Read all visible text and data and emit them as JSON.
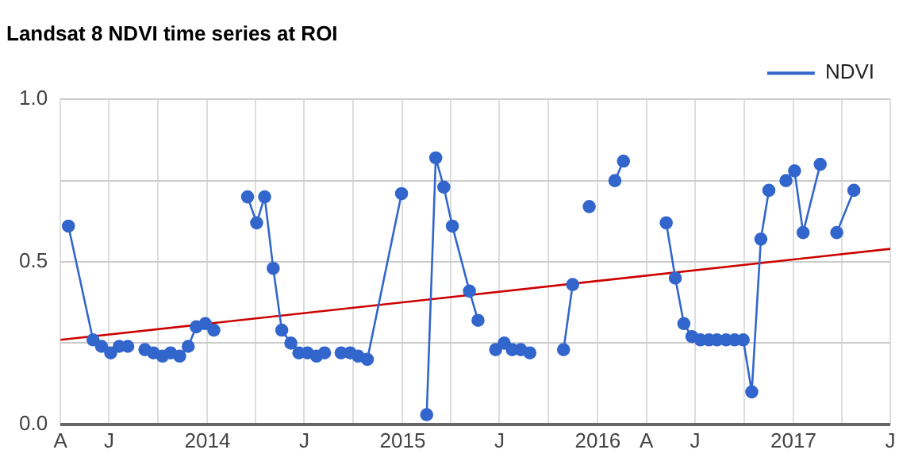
{
  "chart_data": {
    "type": "line",
    "title": "Landsat 8 NDVI time series at ROI",
    "xlim": [
      "2013-04-01",
      "2017-07-01"
    ],
    "xticks": [
      {
        "value": "2013-04-01",
        "label": "A"
      },
      {
        "value": "2013-07-01",
        "label": "J"
      },
      {
        "value": "2013-10-01",
        "label": null
      },
      {
        "value": "2014-01-01",
        "label": "2014"
      },
      {
        "value": "2014-04-01",
        "label": null
      },
      {
        "value": "2014-07-01",
        "label": "J"
      },
      {
        "value": "2014-10-01",
        "label": null
      },
      {
        "value": "2015-01-01",
        "label": "2015"
      },
      {
        "value": "2015-04-01",
        "label": null
      },
      {
        "value": "2015-07-01",
        "label": "J"
      },
      {
        "value": "2015-10-01",
        "label": null
      },
      {
        "value": "2016-01-01",
        "label": "2016"
      },
      {
        "value": "2016-04-01",
        "label": "A"
      },
      {
        "value": "2016-07-01",
        "label": "J"
      },
      {
        "value": "2016-10-01",
        "label": null
      },
      {
        "value": "2017-01-01",
        "label": "2017"
      },
      {
        "value": "2017-04-01",
        "label": null
      },
      {
        "value": "2017-07-01",
        "label": "J"
      }
    ],
    "ylim": [
      0,
      1
    ],
    "yticks": [
      {
        "value": 0,
        "label": "0.0"
      },
      {
        "value": 0.25,
        "label": null
      },
      {
        "value": 0.5,
        "label": "0.5"
      },
      {
        "value": 0.75,
        "label": null
      },
      {
        "value": 1,
        "label": "1.0"
      }
    ],
    "grid": true,
    "legend": "top right",
    "marker": "circle",
    "series": [
      {
        "name": "NDVI",
        "color": "#3366cc",
        "x": [
          "2013-04-16",
          "2013-06-01",
          "2013-06-17",
          "2013-07-04",
          "2013-07-20",
          "2013-08-05",
          "2013-08-20",
          "2013-09-06",
          "2013-09-22",
          "2013-10-09",
          "2013-10-24",
          "2013-11-10",
          "2013-11-26",
          "2013-12-11",
          "2013-12-28",
          "2014-01-13",
          "2014-02-15",
          "2014-03-17",
          "2014-04-03",
          "2014-04-18",
          "2014-05-04",
          "2014-05-20",
          "2014-06-06",
          "2014-06-21",
          "2014-07-07",
          "2014-07-24",
          "2014-08-08",
          "2014-08-24",
          "2014-09-08",
          "2014-09-25",
          "2014-10-10",
          "2014-10-27",
          "2014-12-30",
          "2015-01-20",
          "2015-02-15",
          "2015-03-04",
          "2015-03-19",
          "2015-04-04",
          "2015-05-06",
          "2015-05-22",
          "2015-06-08",
          "2015-06-24",
          "2015-07-10",
          "2015-07-25",
          "2015-08-10",
          "2015-08-27",
          "2015-09-28",
          "2015-10-29",
          "2015-11-15",
          "2015-12-01",
          "2015-12-16",
          "2016-01-10",
          "2016-02-02",
          "2016-02-18",
          "2016-04-01",
          "2016-05-08",
          "2016-05-25",
          "2016-06-10",
          "2016-06-25",
          "2016-07-11",
          "2016-07-27",
          "2016-08-11",
          "2016-08-28",
          "2016-09-13",
          "2016-09-29",
          "2016-10-15",
          "2016-11-01",
          "2016-11-16",
          "2016-12-02",
          "2016-12-18",
          "2017-01-03",
          "2017-01-19",
          "2017-02-20",
          "2017-03-08",
          "2017-03-23",
          "2017-04-24"
        ],
        "values": [
          0.61,
          0.26,
          0.24,
          0.22,
          0.24,
          0.24,
          null,
          0.23,
          0.22,
          0.21,
          0.22,
          0.21,
          0.24,
          0.3,
          0.31,
          0.29,
          null,
          0.7,
          0.62,
          0.7,
          0.48,
          0.29,
          0.25,
          0.22,
          0.22,
          0.21,
          0.22,
          null,
          0.22,
          0.22,
          0.21,
          0.2,
          0.71,
          null,
          0.03,
          0.82,
          0.73,
          0.61,
          0.41,
          0.32,
          null,
          0.23,
          0.25,
          0.23,
          0.23,
          0.22,
          null,
          0.23,
          0.43,
          null,
          0.67,
          null,
          0.75,
          0.81,
          null,
          0.62,
          0.45,
          0.31,
          0.27,
          0.26,
          0.26,
          0.26,
          0.26,
          0.26,
          0.26,
          0.1,
          0.57,
          0.72,
          null,
          0.75,
          0.78,
          0.59,
          0.8,
          null,
          0.59,
          0.72
        ]
      },
      {
        "type": "line",
        "color": "#cc0000",
        "marker": "none",
        "line_style": "solid",
        "x": [
          "2013-04-01",
          "2017-07-01"
        ],
        "values": [
          0.26,
          0.54
        ]
      }
    ]
  }
}
